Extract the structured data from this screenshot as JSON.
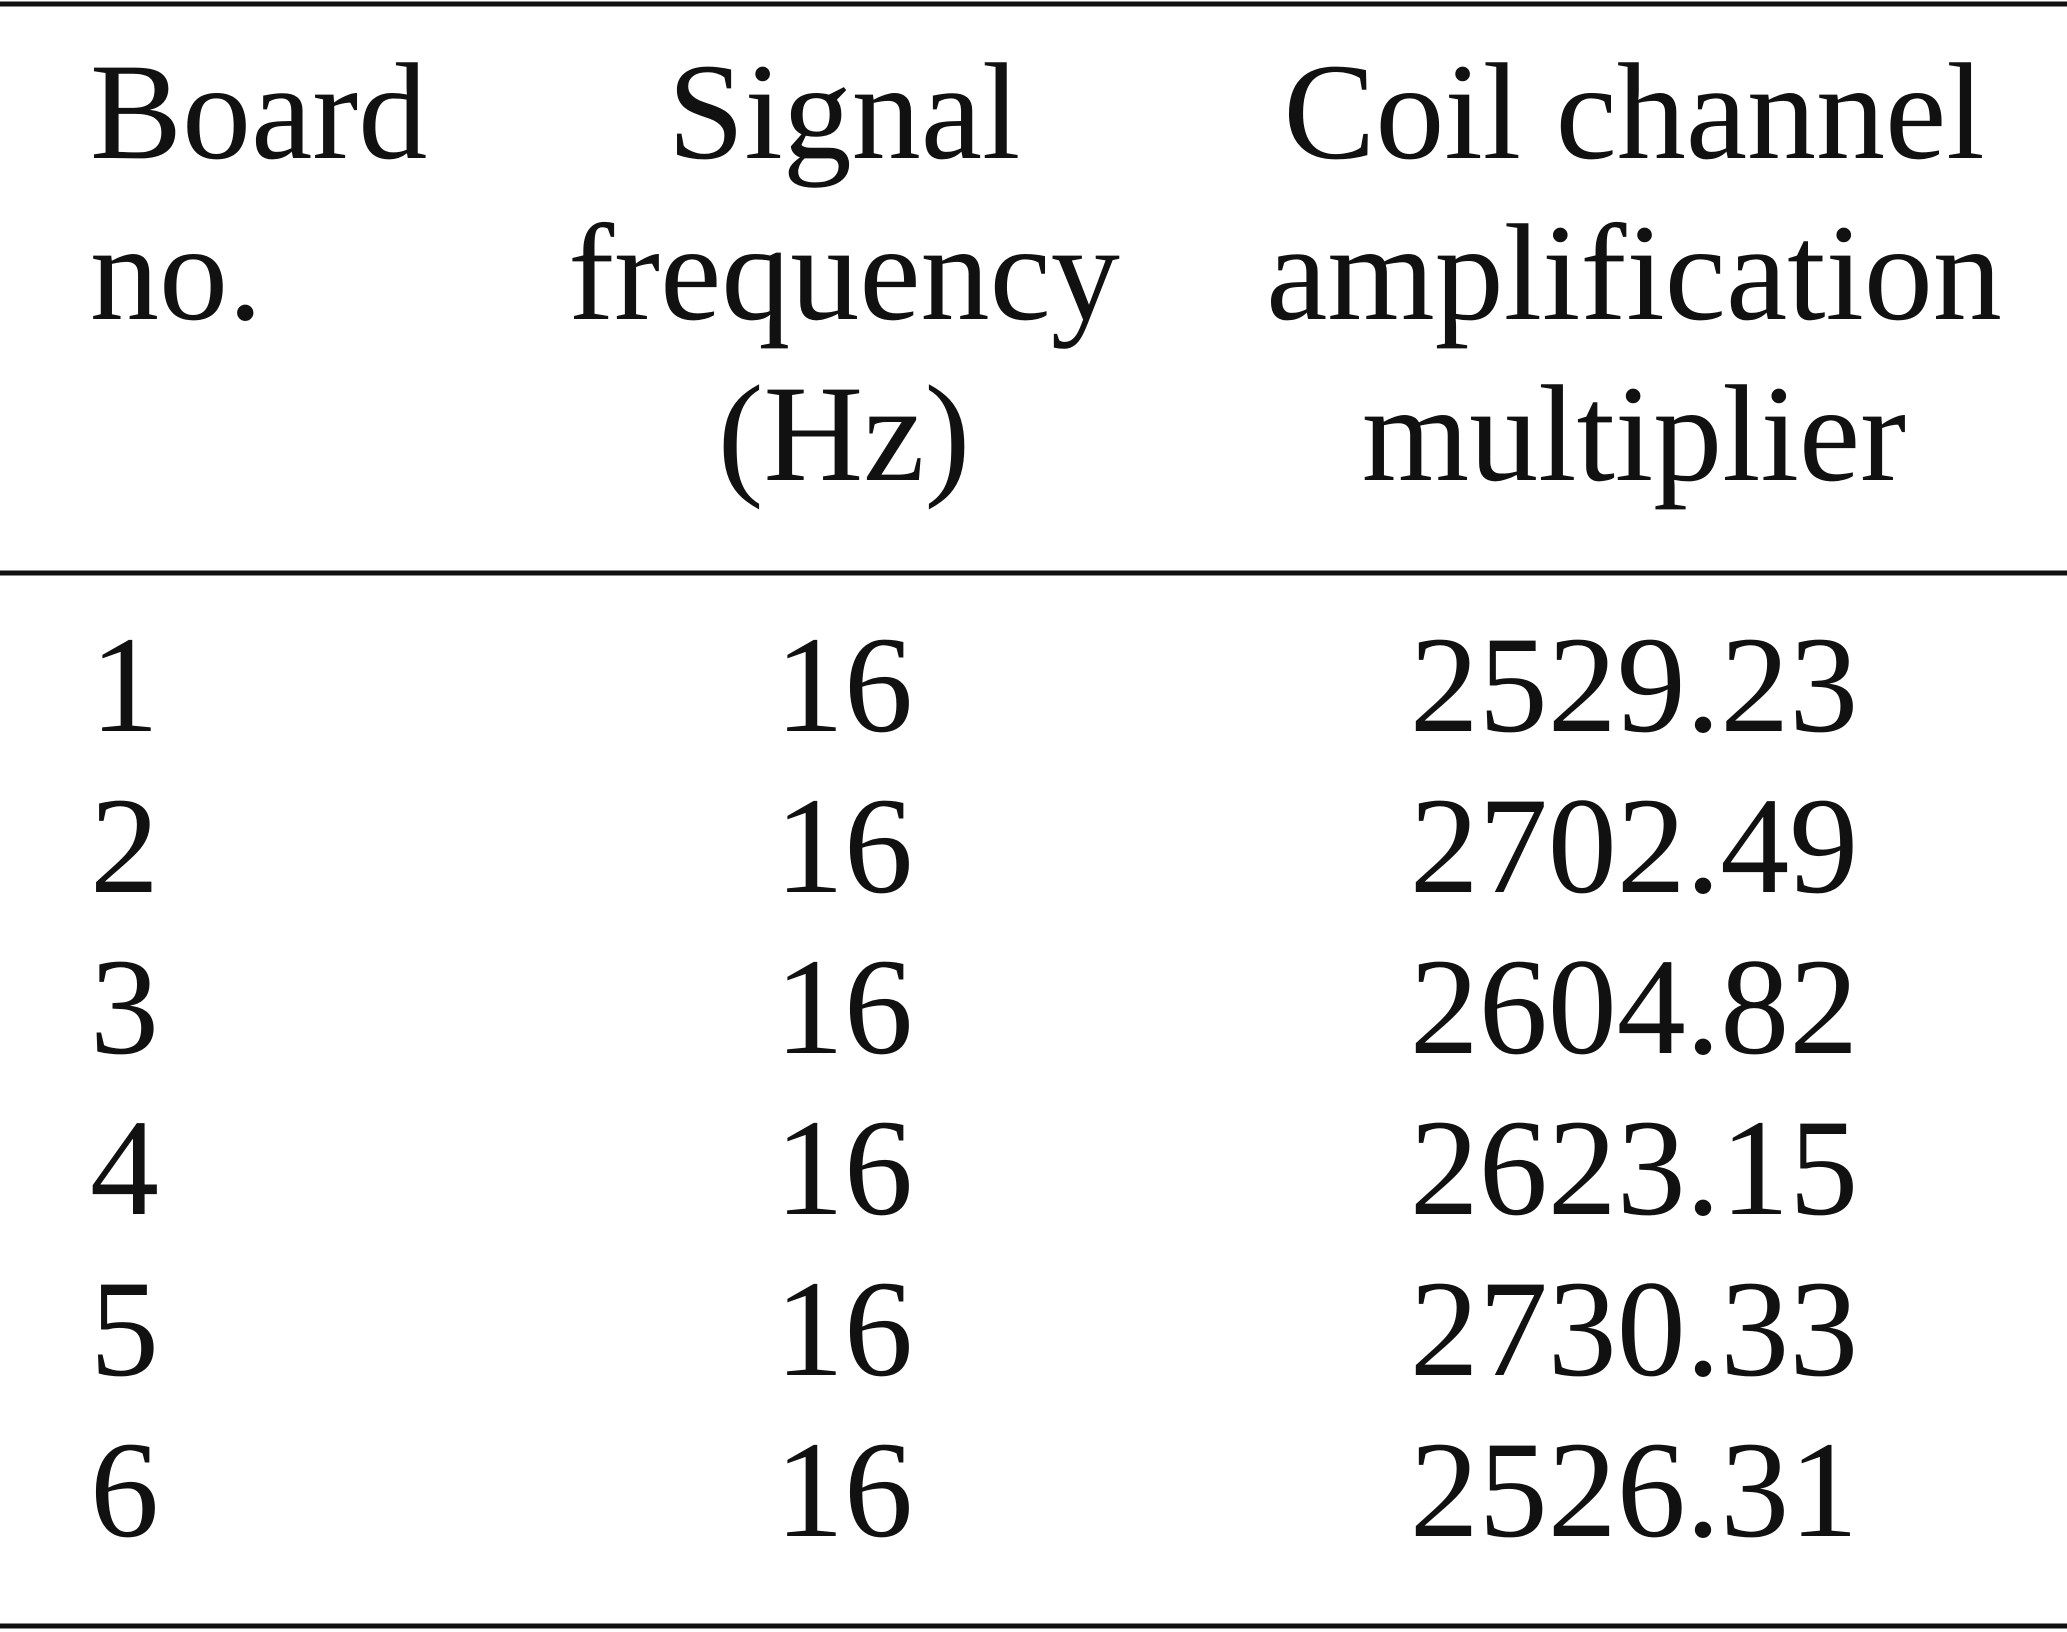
{
  "table": {
    "header": [
      [
        "Board",
        "no."
      ],
      [
        "Signal",
        "frequency",
        "(Hz)"
      ],
      [
        "Coil channel",
        "amplification",
        "multiplier"
      ]
    ],
    "rows": [
      [
        1,
        16,
        2529.23
      ],
      [
        2,
        16,
        2702.49
      ],
      [
        3,
        16,
        2604.82
      ],
      [
        4,
        16,
        2623.15
      ],
      [
        5,
        16,
        2730.33
      ],
      [
        6,
        16,
        2526.31
      ]
    ]
  }
}
